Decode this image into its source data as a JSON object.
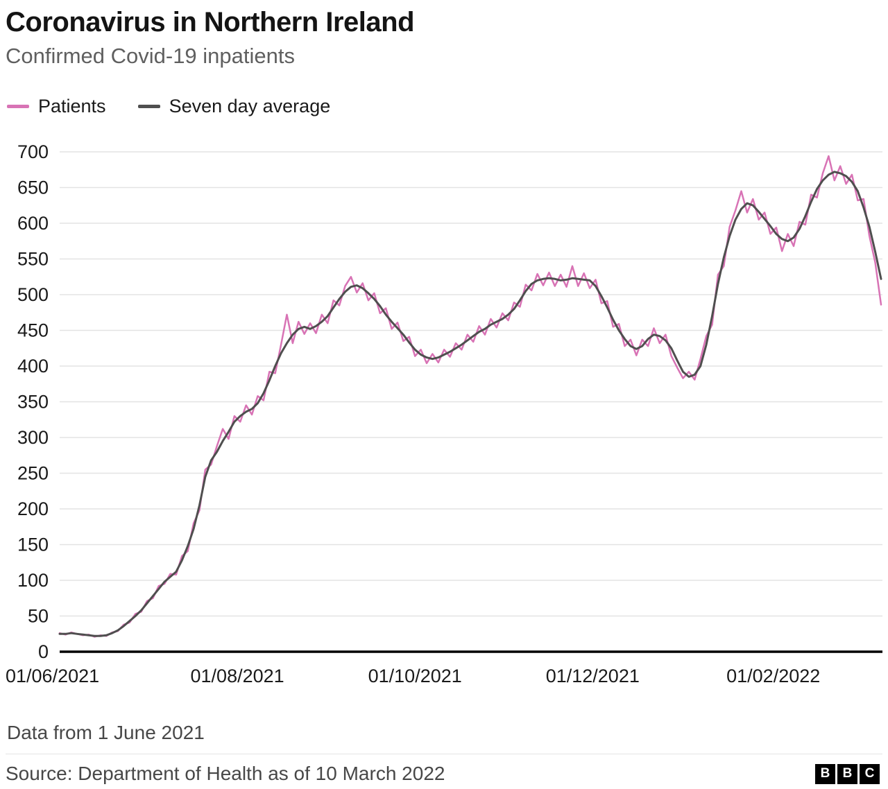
{
  "chart_data": {
    "type": "line",
    "title": "Coronavirus in Northern Ireland",
    "subtitle": "Confirmed Covid-19 inpatients",
    "x_unit": "days since 01/06/2021",
    "x_start_date": "01/06/2021",
    "x_end_date": "10/03/2022",
    "sample_interval_days": 2,
    "ylim": [
      0,
      700
    ],
    "ytick_step": 50,
    "grid": "horizontal",
    "legend_position": "top-left",
    "axis_color": "#000000",
    "grid_color": "#e3e3e3",
    "xticks": [
      {
        "t": 0,
        "label": "01/06/2021"
      },
      {
        "t": 61,
        "label": "01/08/2021"
      },
      {
        "t": 122,
        "label": "01/10/2021"
      },
      {
        "t": 183,
        "label": "01/12/2021"
      },
      {
        "t": 245,
        "label": "01/02/2022"
      }
    ],
    "series": [
      {
        "name": "Patients",
        "color": "#d873b5",
        "stroke_width": 2.5,
        "values": [
          26,
          24,
          27,
          25,
          23,
          24,
          21,
          23,
          22,
          27,
          29,
          38,
          41,
          53,
          56,
          71,
          75,
          92,
          95,
          109,
          108,
          134,
          141,
          180,
          198,
          255,
          262,
          288,
          312,
          298,
          330,
          322,
          345,
          332,
          358,
          352,
          392,
          390,
          430,
          472,
          432,
          462,
          445,
          460,
          446,
          472,
          460,
          492,
          485,
          512,
          525,
          503,
          516,
          492,
          502,
          474,
          481,
          452,
          461,
          435,
          441,
          414,
          423,
          404,
          417,
          405,
          423,
          413,
          432,
          423,
          444,
          434,
          456,
          444,
          466,
          454,
          474,
          464,
          489,
          483,
          514,
          506,
          529,
          513,
          531,
          512,
          528,
          511,
          540,
          512,
          530,
          509,
          521,
          488,
          491,
          455,
          459,
          428,
          437,
          415,
          437,
          428,
          453,
          432,
          444,
          414,
          398,
          383,
          392,
          381,
          410,
          442,
          458,
          528,
          540,
          595,
          618,
          645,
          615,
          634,
          605,
          615,
          585,
          594,
          561,
          585,
          568,
          602,
          598,
          640,
          636,
          670,
          694,
          660,
          680,
          655,
          668,
          632,
          634,
          582,
          545,
          486
        ]
      },
      {
        "name": "Seven day average",
        "color": "#4f4f4f",
        "stroke_width": 3,
        "values": [
          25,
          25,
          26,
          25,
          24,
          23,
          22,
          22,
          23,
          26,
          30,
          36,
          43,
          50,
          58,
          68,
          78,
          88,
          98,
          105,
          112,
          128,
          148,
          172,
          205,
          245,
          268,
          280,
          295,
          308,
          322,
          330,
          336,
          340,
          348,
          362,
          380,
          400,
          418,
          432,
          444,
          452,
          455,
          452,
          456,
          462,
          470,
          482,
          494,
          504,
          511,
          513,
          509,
          502,
          494,
          484,
          472,
          462,
          453,
          444,
          433,
          423,
          416,
          412,
          410,
          412,
          416,
          420,
          425,
          430,
          436,
          442,
          448,
          452,
          458,
          462,
          466,
          472,
          480,
          492,
          505,
          515,
          520,
          522,
          523,
          522,
          520,
          521,
          523,
          522,
          521,
          520,
          512,
          498,
          482,
          465,
          450,
          438,
          428,
          424,
          428,
          438,
          444,
          442,
          436,
          425,
          408,
          392,
          385,
          388,
          400,
          430,
          470,
          515,
          552,
          582,
          605,
          620,
          628,
          625,
          616,
          606,
          596,
          585,
          578,
          575,
          580,
          592,
          610,
          630,
          648,
          660,
          668,
          672,
          670,
          666,
          658,
          645,
          622,
          595,
          560,
          522
        ]
      }
    ]
  },
  "footer": {
    "note": "Data from 1 June 2021",
    "source": "Source: Department of Health as of 10 March 2022",
    "logo": [
      "B",
      "B",
      "C"
    ]
  }
}
